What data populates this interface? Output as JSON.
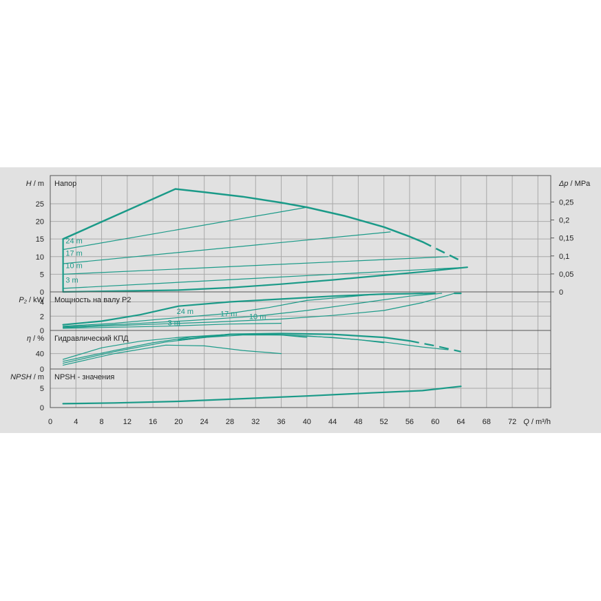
{
  "chart_data": {
    "type": "line",
    "colors": {
      "curve": "#1a9a88",
      "grid": "#a8a8a8",
      "frame": "#555555",
      "background": "#e1e1e1"
    },
    "x": {
      "label_var": "Q",
      "label_unit": "m³/h",
      "range": [
        0,
        78
      ],
      "ticks": [
        0,
        4,
        8,
        12,
        16,
        20,
        24,
        28,
        32,
        36,
        40,
        44,
        48,
        52,
        56,
        60,
        64,
        68,
        72
      ]
    },
    "panels": [
      {
        "id": "head",
        "title": "Напор",
        "y_var": "H",
        "y_unit": "m",
        "y_range": [
          0,
          33
        ],
        "y_ticks": [
          0,
          5,
          10,
          15,
          20,
          25
        ],
        "right_axis": {
          "var": "Δp",
          "unit": "MPa",
          "ticks": [
            {
              "value": 0,
              "label": "0"
            },
            {
              "value": 0.05,
              "label": "0,05"
            },
            {
              "value": 0.1,
              "label": "0,1"
            },
            {
              "value": 0.15,
              "label": "0,15"
            },
            {
              "value": 0.2,
              "label": "0,2"
            },
            {
              "value": 0.25,
              "label": "0,25"
            }
          ]
        },
        "series": [
          {
            "width": 2.5,
            "dashed_tail": true,
            "points": [
              [
                2,
                15
              ],
              [
                19.5,
                29.2
              ],
              [
                24,
                28.3
              ],
              [
                30,
                27
              ],
              [
                36,
                25.3
              ],
              [
                40,
                24
              ],
              [
                46,
                21.5
              ],
              [
                52,
                18.4
              ],
              [
                56,
                15.7
              ],
              [
                58,
                14.2
              ]
            ],
            "tail": [
              [
                58,
                14.2
              ],
              [
                61,
                11.5
              ],
              [
                64,
                8.8
              ]
            ]
          },
          {
            "width": 1.2,
            "points": [
              [
                2,
                12
              ],
              [
                40,
                24
              ]
            ]
          },
          {
            "width": 1.2,
            "points": [
              [
                2,
                8
              ],
              [
                53,
                17
              ]
            ]
          },
          {
            "width": 1.2,
            "points": [
              [
                2,
                5
              ],
              [
                62,
                10
              ]
            ]
          },
          {
            "width": 1.2,
            "points": [
              [
                2,
                1
              ],
              [
                65,
                7
              ]
            ]
          },
          {
            "width": 2.2,
            "points": [
              [
                2,
                0
              ],
              [
                20,
                0.5
              ],
              [
                28,
                1.2
              ],
              [
                36,
                2.2
              ],
              [
                44,
                3.4
              ],
              [
                52,
                4.7
              ],
              [
                58,
                5.7
              ],
              [
                65,
                7
              ]
            ]
          },
          {
            "width": 2.2,
            "points": [
              [
                2,
                0
              ],
              [
                2,
                15
              ]
            ]
          }
        ],
        "curve_labels": [
          {
            "text": "24 m",
            "x": 2.4,
            "y": 13.8
          },
          {
            "text": "17 m",
            "x": 2.4,
            "y": 10.3
          },
          {
            "text": "10 m",
            "x": 2.4,
            "y": 6.7
          },
          {
            "text": "3 m",
            "x": 2.4,
            "y": 2.6
          }
        ]
      },
      {
        "id": "power",
        "title": "Мощность на валу P2",
        "y_var": "P₂",
        "y_unit": "kW",
        "y_range": [
          0,
          5.4
        ],
        "y_ticks": [
          0,
          2,
          4
        ],
        "series": [
          {
            "width": 2.2,
            "points": [
              [
                2,
                0.8
              ],
              [
                8,
                1.3
              ],
              [
                14,
                2.2
              ],
              [
                20,
                3.4
              ],
              [
                28,
                4
              ],
              [
                36,
                4.4
              ],
              [
                44,
                4.8
              ],
              [
                52,
                5.1
              ],
              [
                60,
                5.2
              ]
            ]
          },
          {
            "width": 2.2,
            "points": [
              [
                63,
                5.2
              ],
              [
                64,
                5.2
              ]
            ]
          },
          {
            "width": 1.2,
            "points": [
              [
                2,
                0.6
              ],
              [
                10,
                1
              ],
              [
                20,
                1.8
              ],
              [
                28,
                2.4
              ],
              [
                34,
                3.2
              ],
              [
                40,
                4.2
              ],
              [
                50,
                5
              ],
              [
                58,
                5.25
              ]
            ]
          },
          {
            "width": 1.2,
            "points": [
              [
                2,
                0.5
              ],
              [
                12,
                0.9
              ],
              [
                22,
                1.4
              ],
              [
                32,
                2
              ],
              [
                40,
                2.8
              ],
              [
                48,
                3.8
              ],
              [
                56,
                4.8
              ],
              [
                61,
                5.2
              ]
            ]
          },
          {
            "width": 1.2,
            "points": [
              [
                2,
                0.4
              ],
              [
                14,
                0.8
              ],
              [
                26,
                1.2
              ],
              [
                36,
                1.6
              ],
              [
                44,
                2.1
              ],
              [
                52,
                2.8
              ],
              [
                58,
                3.9
              ],
              [
                63,
                5.2
              ]
            ]
          },
          {
            "width": 1.2,
            "points": [
              [
                2,
                0.3
              ],
              [
                18,
                0.6
              ],
              [
                28,
                0.9
              ],
              [
                36,
                1
              ]
            ]
          }
        ],
        "curve_labels": [
          {
            "text": "24 m",
            "x": 19.7,
            "y": 2.3
          },
          {
            "text": "17 m",
            "x": 26.5,
            "y": 2.0
          },
          {
            "text": "10 m",
            "x": 31,
            "y": 1.6
          },
          {
            "text": "3 m",
            "x": 18.3,
            "y": 0.7
          }
        ]
      },
      {
        "id": "efficiency",
        "title": "Гидравлический КПД",
        "y_var": "η",
        "y_unit": "%",
        "y_range": [
          0,
          100
        ],
        "y_ticks": [
          0,
          40
        ],
        "series": [
          {
            "width": 2.2,
            "dashed_tail": true,
            "points": [
              [
                20,
                75
              ],
              [
                28,
                90
              ],
              [
                36,
                92
              ],
              [
                44,
                90
              ],
              [
                52,
                82
              ],
              [
                56,
                73
              ]
            ],
            "tail": [
              [
                56,
                73
              ],
              [
                60,
                60
              ],
              [
                64,
                45
              ]
            ]
          },
          {
            "width": 1.2,
            "points": [
              [
                2,
                25
              ],
              [
                8,
                55
              ],
              [
                14,
                72
              ],
              [
                20,
                82
              ],
              [
                28,
                90
              ],
              [
                36,
                88
              ],
              [
                44,
                82
              ],
              [
                52,
                70
              ],
              [
                58,
                57
              ],
              [
                62,
                50
              ]
            ]
          },
          {
            "width": 1.2,
            "points": [
              [
                2,
                20
              ],
              [
                10,
                48
              ],
              [
                16,
                68
              ],
              [
                22,
                83
              ],
              [
                28,
                90
              ],
              [
                34,
                90
              ],
              [
                40,
                86
              ],
              [
                48,
                76
              ],
              [
                52,
                68
              ]
            ]
          },
          {
            "width": 1.2,
            "points": [
              [
                2,
                15
              ],
              [
                10,
                45
              ],
              [
                18,
                70
              ],
              [
                24,
                82
              ],
              [
                30,
                88
              ],
              [
                36,
                88
              ],
              [
                40,
                82
              ]
            ]
          },
          {
            "width": 1.2,
            "points": [
              [
                2,
                10
              ],
              [
                10,
                40
              ],
              [
                18,
                62
              ],
              [
                24,
                60
              ],
              [
                30,
                48
              ],
              [
                36,
                40
              ]
            ]
          }
        ],
        "curve_labels": []
      },
      {
        "id": "npsh",
        "title": "NPSH - значения",
        "y_var": "NPSH",
        "y_unit": "m",
        "y_range": [
          0,
          10
        ],
        "y_ticks": [
          0,
          5
        ],
        "series": [
          {
            "width": 2.2,
            "points": [
              [
                2,
                1
              ],
              [
                10,
                1.2
              ],
              [
                20,
                1.6
              ],
              [
                30,
                2.3
              ],
              [
                40,
                3.0
              ],
              [
                50,
                3.8
              ],
              [
                58,
                4.4
              ],
              [
                64,
                5.5
              ]
            ]
          }
        ],
        "curve_labels": []
      }
    ]
  }
}
